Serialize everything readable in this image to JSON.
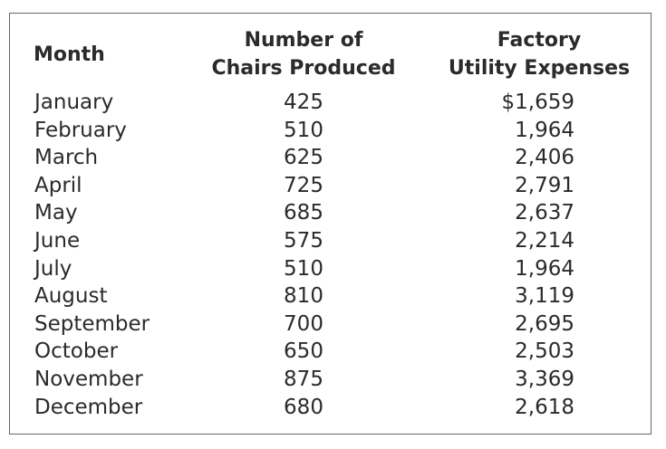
{
  "table": {
    "headers": {
      "month": "Month",
      "chairs_line1": "Number of",
      "chairs_line2": "Chairs Produced",
      "util_line1": "Factory",
      "util_line2": "Utility Expenses"
    },
    "rows": [
      {
        "month": "January",
        "chairs": "425",
        "utility": "$1,659"
      },
      {
        "month": "February",
        "chairs": "510",
        "utility": "1,964"
      },
      {
        "month": "March",
        "chairs": "625",
        "utility": "2,406"
      },
      {
        "month": "April",
        "chairs": "725",
        "utility": "2,791"
      },
      {
        "month": "May",
        "chairs": "685",
        "utility": "2,637"
      },
      {
        "month": "June",
        "chairs": "575",
        "utility": "2,214"
      },
      {
        "month": "July",
        "chairs": "510",
        "utility": "1,964"
      },
      {
        "month": "August",
        "chairs": "810",
        "utility": "3,119"
      },
      {
        "month": "September",
        "chairs": "700",
        "utility": "2,695"
      },
      {
        "month": "October",
        "chairs": "650",
        "utility": "2,503"
      },
      {
        "month": "November",
        "chairs": "875",
        "utility": "3,369"
      },
      {
        "month": "December",
        "chairs": "680",
        "utility": "2,618"
      }
    ]
  }
}
